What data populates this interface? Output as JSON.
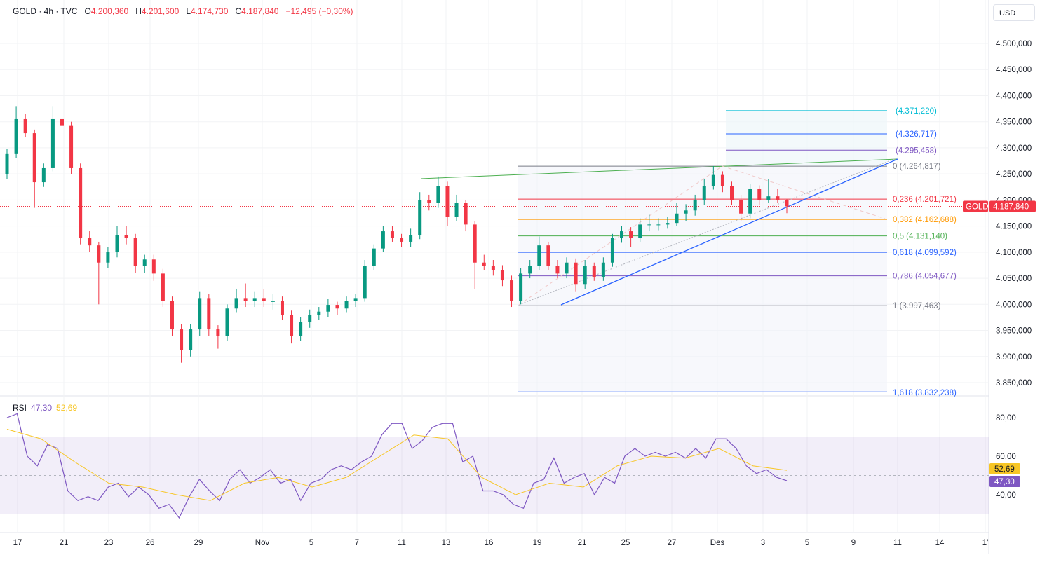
{
  "header": {
    "symbol": "GOLD · 4h · TVC",
    "open_label": "O",
    "open": "4.200,360",
    "high_label": "H",
    "high": "4.201,600",
    "low_label": "L",
    "low": "4.174,730",
    "close_label": "C",
    "close": "4.187,840",
    "change": "−12,495 (−0,30%)"
  },
  "currency_button": "USD",
  "price_badge": {
    "symbol": "GOLD",
    "value": "4.187,840"
  },
  "rsi_legend": {
    "label": "RSI",
    "value": "47,30",
    "ma_value": "52,69"
  },
  "rsi_badges": {
    "ma": "52,69",
    "rsi": "47,30"
  },
  "colors": {
    "up": "#089981",
    "down": "#f23645",
    "rsi": "#7e57c2",
    "rsi_ma": "#f7c626",
    "fib_zone": "#f0f3fa"
  },
  "chart_data": [
    {
      "type": "candlestick",
      "title": "GOLD · 4h · TVC",
      "ylim": [
        3820,
        4540
      ],
      "y_ticks": [
        "4.500,000",
        "4.450,000",
        "4.400,000",
        "4.350,000",
        "4.300,000",
        "4.250,000",
        "4.200,000",
        "4.150,000",
        "4.100,000",
        "4.050,000",
        "4.000,000",
        "3.950,000",
        "3.900,000",
        "3.850,000"
      ],
      "y_tick_values": [
        4500,
        4450,
        4400,
        4350,
        4300,
        4250,
        4200,
        4150,
        4100,
        4050,
        4000,
        3950,
        3900,
        3850
      ],
      "x_ticks": [
        "17",
        "21",
        "23",
        "26",
        "29",
        "Nov",
        "5",
        "7",
        "11",
        "13",
        "16",
        "19",
        "21",
        "25",
        "27",
        "Des",
        "3",
        "5",
        "9",
        "11",
        "14",
        "1'"
      ],
      "grid": true,
      "last_price": 4187.84,
      "candles": [
        [
          4250,
          4298,
          4240,
          4288
        ],
        [
          4288,
          4380,
          4280,
          4355
        ],
        [
          4355,
          4365,
          4320,
          4328
        ],
        [
          4328,
          4335,
          4185,
          4234
        ],
        [
          4234,
          4270,
          4225,
          4261
        ],
        [
          4261,
          4380,
          4255,
          4355
        ],
        [
          4355,
          4370,
          4330,
          4342
        ],
        [
          4342,
          4350,
          4250,
          4261
        ],
        [
          4261,
          4270,
          4115,
          4127
        ],
        [
          4127,
          4140,
          4100,
          4113
        ],
        [
          4113,
          4120,
          4000,
          4080
        ],
        [
          4080,
          4110,
          4070,
          4100
        ],
        [
          4100,
          4150,
          4090,
          4133
        ],
        [
          4133,
          4150,
          4115,
          4127
        ],
        [
          4127,
          4135,
          4060,
          4073
        ],
        [
          4073,
          4095,
          4060,
          4086
        ],
        [
          4086,
          4095,
          4045,
          4059
        ],
        [
          4059,
          4068,
          3995,
          4006
        ],
        [
          4006,
          4015,
          3940,
          3952
        ],
        [
          3952,
          3962,
          3888,
          3912
        ],
        [
          3912,
          3962,
          3900,
          3952
        ],
        [
          3952,
          4025,
          3940,
          4012
        ],
        [
          4012,
          4020,
          3940,
          3952
        ],
        [
          3952,
          3960,
          3915,
          3939
        ],
        [
          3939,
          4000,
          3930,
          3992
        ],
        [
          3992,
          4030,
          3985,
          4012
        ],
        [
          4012,
          4040,
          3995,
          4006
        ],
        [
          4006,
          4025,
          3995,
          4012
        ],
        [
          4012,
          4030,
          3995,
          4006
        ],
        [
          4006,
          4020,
          3990,
          4006
        ],
        [
          4006,
          4015,
          3970,
          3979
        ],
        [
          3979,
          3988,
          3925,
          3939
        ],
        [
          3939,
          3975,
          3930,
          3966
        ],
        [
          3966,
          3990,
          3955,
          3979
        ],
        [
          3979,
          3995,
          3970,
          3986
        ],
        [
          3986,
          4010,
          3975,
          3999
        ],
        [
          3999,
          4005,
          3980,
          3992
        ],
        [
          3992,
          4015,
          3985,
          4006
        ],
        [
          4006,
          4020,
          3995,
          4012
        ],
        [
          4012,
          4085,
          4005,
          4073
        ],
        [
          4073,
          4115,
          4065,
          4107
        ],
        [
          4107,
          4150,
          4100,
          4140
        ],
        [
          4140,
          4150,
          4120,
          4127
        ],
        [
          4127,
          4135,
          4110,
          4120
        ],
        [
          4120,
          4145,
          4110,
          4133
        ],
        [
          4133,
          4215,
          4125,
          4200
        ],
        [
          4200,
          4210,
          4180,
          4194
        ],
        [
          4194,
          4245,
          4185,
          4227
        ],
        [
          4227,
          4235,
          4150,
          4167
        ],
        [
          4167,
          4210,
          4160,
          4194
        ],
        [
          4194,
          4200,
          4140,
          4153
        ],
        [
          4153,
          4160,
          4030,
          4080
        ],
        [
          4080,
          4095,
          4065,
          4073
        ],
        [
          4073,
          4085,
          4055,
          4066
        ],
        [
          4066,
          4075,
          4035,
          4046
        ],
        [
          4046,
          4055,
          3995,
          4006
        ],
        [
          4006,
          4070,
          4000,
          4059
        ],
        [
          4059,
          4085,
          4050,
          4073
        ],
        [
          4073,
          4130,
          4065,
          4113
        ],
        [
          4113,
          4120,
          4065,
          4073
        ],
        [
          4073,
          4085,
          4050,
          4059
        ],
        [
          4059,
          4090,
          4050,
          4080
        ],
        [
          4080,
          4088,
          4025,
          4039
        ],
        [
          4039,
          4085,
          4030,
          4073
        ],
        [
          4073,
          4080,
          4045,
          4052
        ],
        [
          4052,
          4090,
          4045,
          4080
        ],
        [
          4080,
          4135,
          4072,
          4127
        ],
        [
          4127,
          4150,
          4118,
          4140
        ],
        [
          4140,
          4148,
          4110,
          4127
        ],
        [
          4127,
          4165,
          4120,
          4153
        ],
        [
          4153,
          4172,
          4140,
          4153
        ],
        [
          4153,
          4165,
          4142,
          4153
        ],
        [
          4153,
          4168,
          4145,
          4156
        ],
        [
          4156,
          4195,
          4150,
          4174
        ],
        [
          4174,
          4192,
          4160,
          4180
        ],
        [
          4180,
          4210,
          4170,
          4200
        ],
        [
          4200,
          4240,
          4190,
          4227
        ],
        [
          4227,
          4265,
          4220,
          4248
        ],
        [
          4248,
          4255,
          4215,
          4227
        ],
        [
          4227,
          4235,
          4190,
          4200
        ],
        [
          4200,
          4210,
          4160,
          4174
        ],
        [
          4174,
          4230,
          4165,
          4221
        ],
        [
          4221,
          4228,
          4190,
          4200
        ],
        [
          4200,
          4240,
          4195,
          4207
        ],
        [
          4207,
          4222,
          4195,
          4200
        ],
        [
          4200.36,
          4201.6,
          4174.73,
          4187.84
        ]
      ],
      "fib_levels": [
        {
          "ratio": "0",
          "price": 4264.817,
          "label": "0 (4.264,817)",
          "color": "#787b86"
        },
        {
          "ratio": "0,236",
          "price": 4201.721,
          "label": "0,236 (4.201,721)",
          "color": "#f23645"
        },
        {
          "ratio": "0,382",
          "price": 4162.688,
          "label": "0,382 (4.162,688)",
          "color": "#ff9800"
        },
        {
          "ratio": "0,5",
          "price": 4131.14,
          "label": "0,5 (4.131,140)",
          "color": "#4caf50"
        },
        {
          "ratio": "0,618",
          "price": 4099.592,
          "label": "0,618 (4.099,592)",
          "color": "#2962ff"
        },
        {
          "ratio": "0,786",
          "price": 4054.677,
          "label": "0,786 (4.054,677)",
          "color": "#7e57c2"
        },
        {
          "ratio": "1",
          "price": 3997.463,
          "label": "1 (3.997,463)",
          "color": "#787b86"
        },
        {
          "ratio": "1,618",
          "price": 3832.238,
          "label": "1,618 (3.832,238)",
          "color": "#2962ff"
        }
      ],
      "fib_extensions": [
        {
          "price": 4371.22,
          "label": "(4.371,220)",
          "color": "#00bcd4"
        },
        {
          "price": 4326.717,
          "label": "(4.326,717)",
          "color": "#2962ff"
        },
        {
          "price": 4295.458,
          "label": "(4.295,458)",
          "color": "#7e57c2"
        }
      ]
    },
    {
      "type": "line",
      "title": "RSI",
      "ylim": [
        22,
        92
      ],
      "y_ticks": [
        "80,00",
        "60,00",
        "40,00"
      ],
      "y_tick_values": [
        80,
        60,
        40
      ],
      "bands": [
        70,
        30
      ],
      "midline": 50,
      "series": [
        {
          "name": "RSI",
          "color": "#7e57c2",
          "values": [
            80,
            82,
            60,
            55,
            66,
            64,
            42,
            37,
            39,
            37,
            44,
            46,
            39,
            44,
            40,
            33,
            35,
            28,
            39,
            48,
            42,
            37,
            48,
            53,
            46,
            49,
            53,
            46,
            48,
            37,
            46,
            48,
            53,
            55,
            53,
            57,
            60,
            71,
            77,
            77,
            64,
            68,
            75,
            77,
            77,
            57,
            60,
            42,
            42,
            40,
            35,
            33,
            46,
            48,
            59,
            46,
            49,
            51,
            40,
            49,
            46,
            60,
            64,
            60,
            62,
            60,
            62,
            59,
            64,
            59,
            69,
            69,
            64,
            55,
            51,
            53,
            49,
            47.3
          ]
        },
        {
          "name": "RSI MA",
          "color": "#f7c626",
          "values": [
            74,
            69,
            57,
            46,
            44,
            40,
            37,
            46,
            49,
            44,
            49,
            60,
            71,
            69,
            49,
            40,
            46,
            44,
            55,
            60,
            59,
            64,
            55,
            52.69
          ]
        }
      ]
    }
  ]
}
